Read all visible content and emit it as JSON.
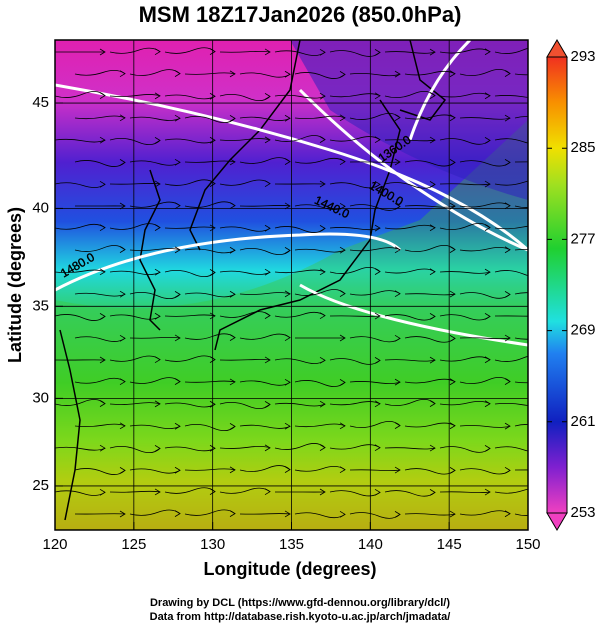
{
  "chart_data": {
    "type": "map",
    "title": "MSM 18Z17Jan2026 (850.0hPa)",
    "xlabel": "Longitude (degrees)",
    "ylabel": "Latitude  (degrees)",
    "xlim": [
      120,
      150
    ],
    "xticks": [
      120,
      125,
      130,
      135,
      140,
      145,
      150
    ],
    "ylim": [
      22.4,
      47.8
    ],
    "yticks": [
      25,
      30,
      35,
      40,
      45
    ],
    "clim": [
      253,
      293
    ],
    "cticks": [
      253,
      261,
      269,
      277,
      285,
      293
    ],
    "contour_labels": [
      "1360.0",
      "1400.0",
      "1440.0",
      "1480.0"
    ],
    "credits": [
      "Drawing by DCL (https://www.gfd-dennou.org/library/dcl/)",
      "Data from http://database.rish.kyoto-u.ac.jp/arch/jmadata/"
    ],
    "grid": true
  }
}
